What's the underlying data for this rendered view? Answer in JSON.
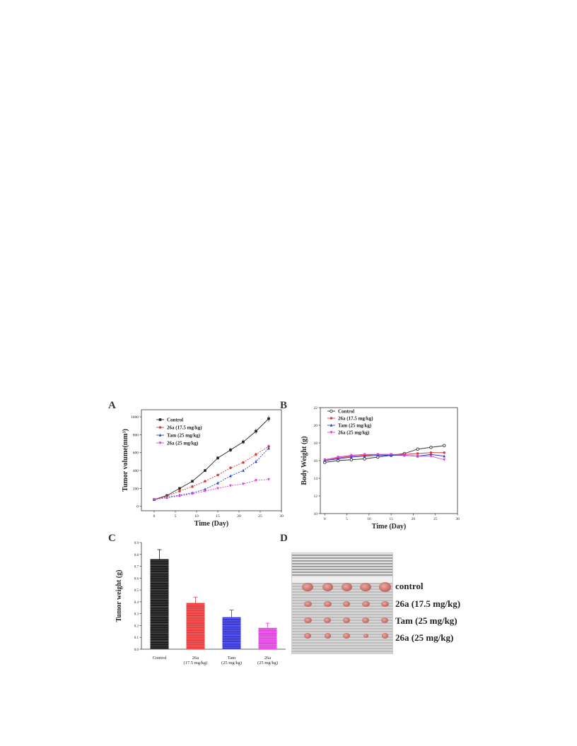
{
  "panels": {
    "a": "A",
    "b": "B",
    "c": "C",
    "d": "D"
  },
  "chart_data": [
    {
      "panel": "A",
      "type": "line",
      "xlabel": "Time (Day)",
      "ylabel": "Tumor volume(mm³)",
      "xlim": [
        -3,
        30
      ],
      "ylim": [
        -50,
        1080
      ],
      "xticks": [
        0,
        5,
        10,
        15,
        20,
        25,
        30
      ],
      "yticks": [
        0,
        200,
        400,
        600,
        800,
        1000
      ],
      "legend_placement": "top-left",
      "x": [
        0,
        3,
        6,
        9,
        12,
        15,
        18,
        21,
        24,
        27
      ],
      "series": [
        {
          "name": "Control",
          "color": "#222222",
          "marker": "square",
          "values": [
            75,
            120,
            200,
            280,
            400,
            540,
            630,
            720,
            840,
            980
          ]
        },
        {
          "name": "26a (17.5 mg/kg)",
          "color": "#e03a3a",
          "marker": "circle",
          "values": [
            75,
            110,
            170,
            220,
            280,
            350,
            430,
            490,
            580,
            670
          ]
        },
        {
          "name": "Tam (25 mg/kg)",
          "color": "#2b3fd8",
          "marker": "triangle",
          "values": [
            75,
            100,
            125,
            150,
            190,
            260,
            340,
            400,
            500,
            650
          ]
        },
        {
          "name": "26a (25 mg/kg)",
          "color": "#e03ae0",
          "marker": "triangle-down",
          "values": [
            75,
            95,
            115,
            140,
            170,
            200,
            230,
            250,
            290,
            300
          ]
        }
      ]
    },
    {
      "panel": "B",
      "type": "line",
      "xlabel": "Time (Day)",
      "ylabel": "Body Weight (g)",
      "xlim": [
        -1,
        30
      ],
      "ylim": [
        10,
        22
      ],
      "xticks": [
        0,
        5,
        10,
        15,
        20,
        25,
        30
      ],
      "yticks": [
        10,
        12,
        14,
        16,
        18,
        20,
        22
      ],
      "legend_placement": "top-left",
      "x": [
        0,
        3,
        6,
        9,
        12,
        15,
        18,
        21,
        24,
        27
      ],
      "series": [
        {
          "name": "Control",
          "color": "#333333",
          "marker": "circle-open",
          "values": [
            15.8,
            16.0,
            16.1,
            16.2,
            16.4,
            16.6,
            16.8,
            17.3,
            17.5,
            17.7
          ]
        },
        {
          "name": "26a (17.5 mg/kg)",
          "color": "#e03a3a",
          "marker": "circle",
          "values": [
            16.0,
            16.3,
            16.5,
            16.6,
            16.7,
            16.7,
            16.7,
            16.8,
            16.9,
            16.9
          ]
        },
        {
          "name": "Tam (25 mg/kg)",
          "color": "#2b3fd8",
          "marker": "triangle",
          "values": [
            16.0,
            16.2,
            16.4,
            16.5,
            16.6,
            16.6,
            16.6,
            16.5,
            16.7,
            16.5
          ]
        },
        {
          "name": "26a (25 mg/kg)",
          "color": "#e03ae0",
          "marker": "triangle-down",
          "values": [
            16.1,
            16.4,
            16.6,
            16.7,
            16.7,
            16.7,
            16.6,
            16.5,
            16.5,
            16.1
          ]
        }
      ]
    },
    {
      "panel": "C",
      "type": "bar",
      "ylabel": "Tumor weight (g)",
      "ylim": [
        0,
        0.9
      ],
      "yticks": [
        "0.0",
        "0.1",
        "0.2",
        "0.3",
        "0.4",
        "0.5",
        "0.6",
        "0.7",
        "0.8",
        "0.9"
      ],
      "categories": [
        [
          "Control"
        ],
        [
          "26a",
          "(17.5 mg/kg)"
        ],
        [
          "Tam",
          "(25 mg/kg)"
        ],
        [
          "26a",
          "(25 mg/kg)"
        ]
      ],
      "values": [
        0.76,
        0.39,
        0.27,
        0.18
      ],
      "errors": [
        0.08,
        0.05,
        0.06,
        0.04
      ],
      "colors": [
        "#111111",
        "#e83434",
        "#3030d8",
        "#e040e0"
      ]
    }
  ],
  "photo": {
    "labels": [
      "control",
      "26a (17.5 mg/kg)",
      "Tam (25 mg/kg)",
      "26a (25 mg/kg)"
    ],
    "tumor_color": "#c8736b"
  }
}
